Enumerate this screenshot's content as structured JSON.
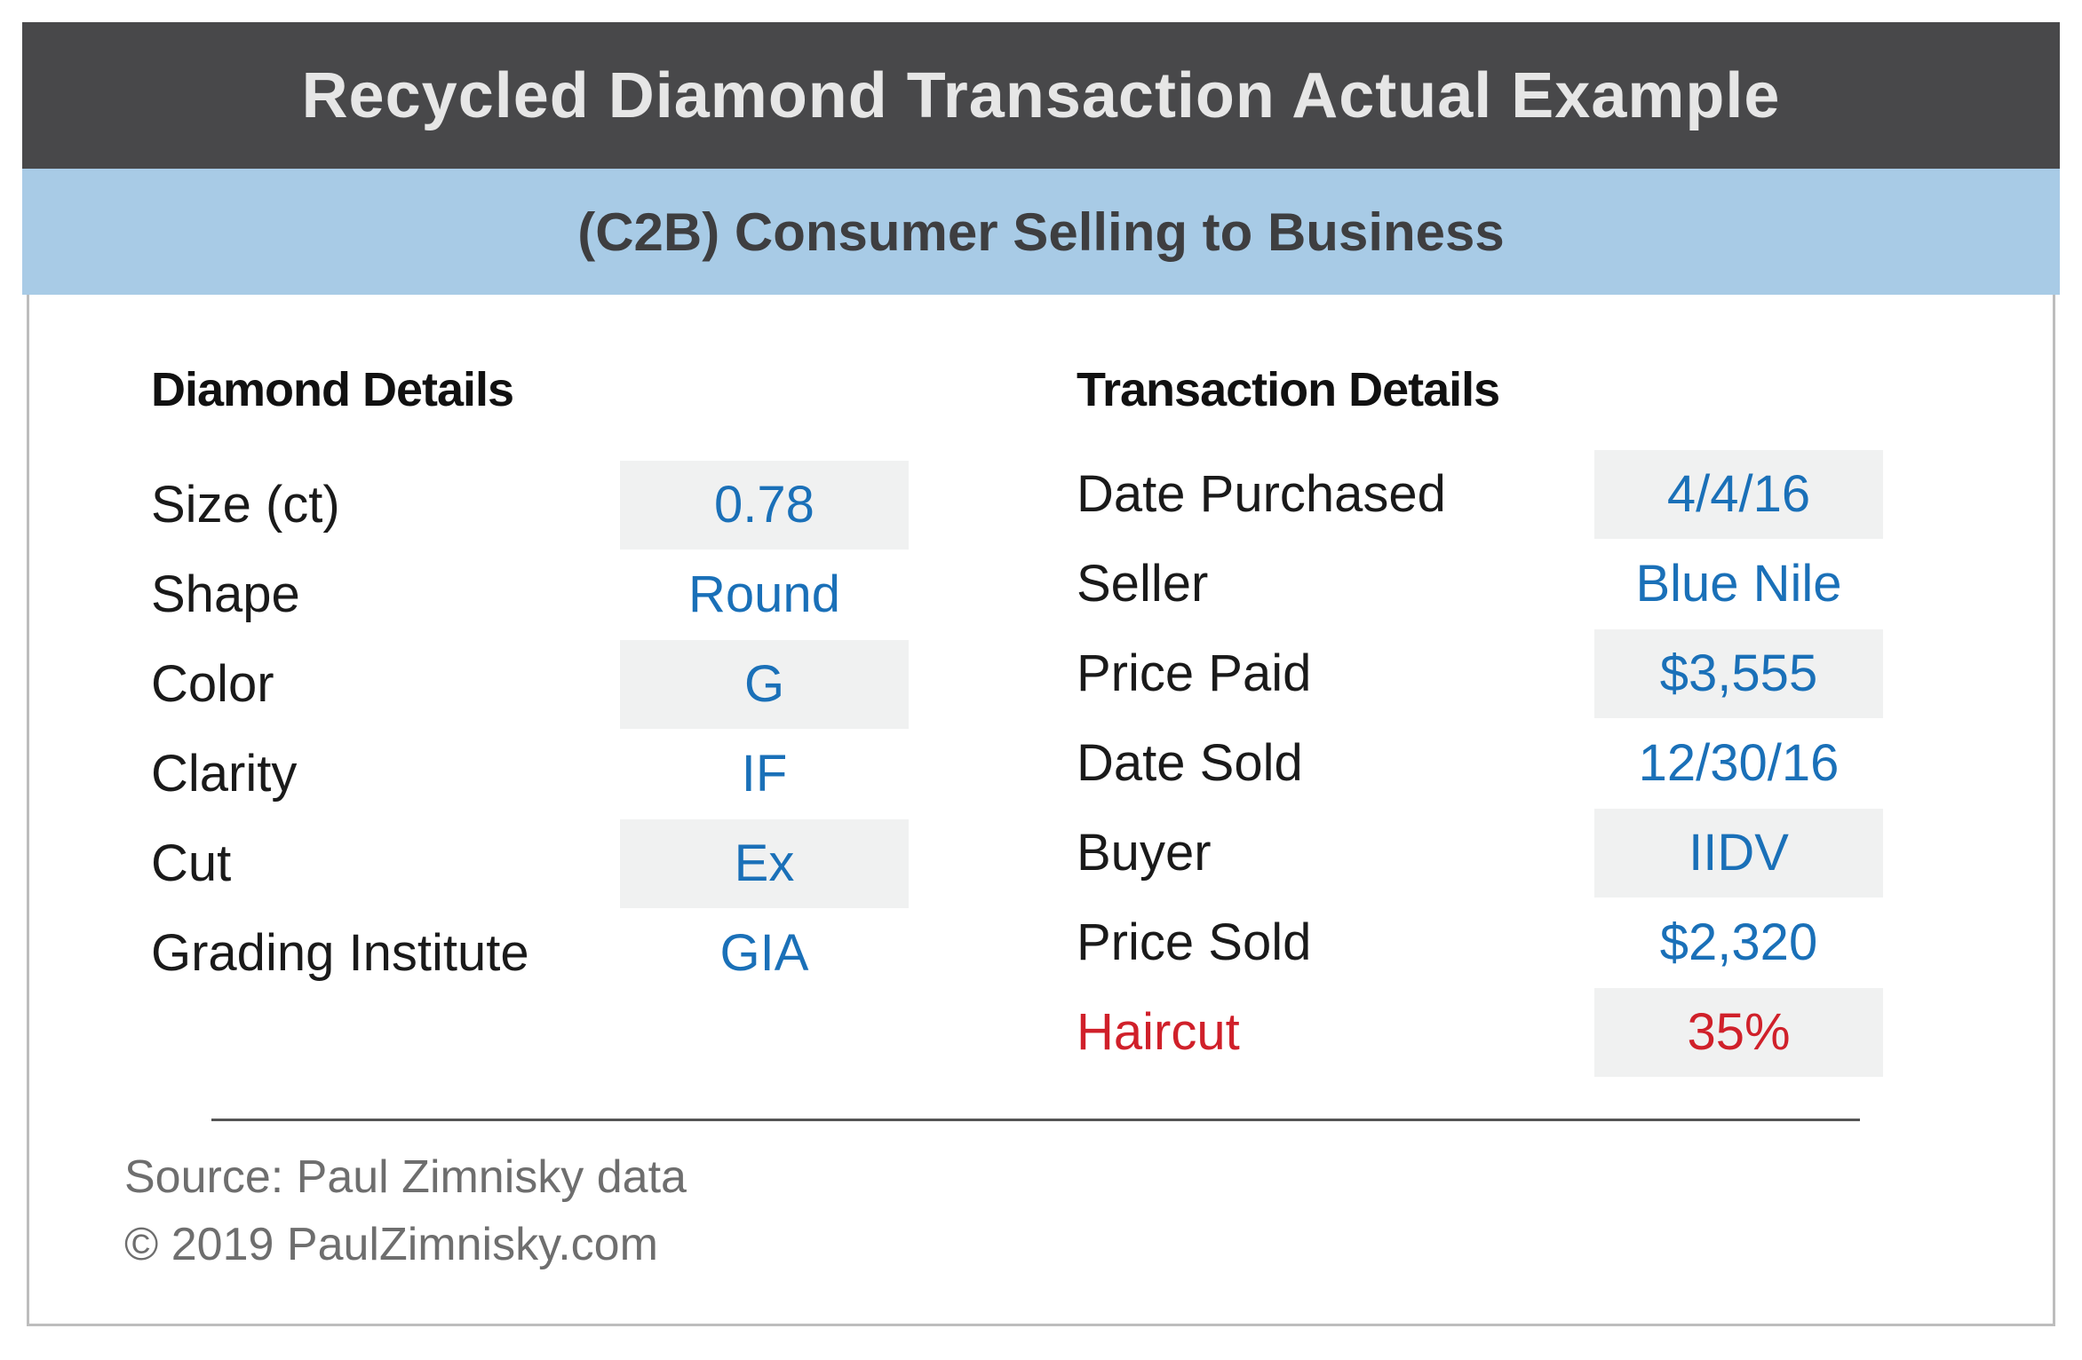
{
  "header": {
    "title": "Recycled Diamond Transaction Actual Example",
    "subtitle": "(C2B) Consumer Selling to Business"
  },
  "diamond_details": {
    "heading": "Diamond Details",
    "rows": [
      {
        "label": "Size (ct)",
        "value": "0.78"
      },
      {
        "label": "Shape",
        "value": "Round"
      },
      {
        "label": "Color",
        "value": "G"
      },
      {
        "label": "Clarity",
        "value": "IF"
      },
      {
        "label": "Cut",
        "value": "Ex"
      },
      {
        "label": "Grading Institute",
        "value": "GIA"
      }
    ]
  },
  "transaction_details": {
    "heading": "Transaction Details",
    "rows": [
      {
        "label": "Date Purchased",
        "value": "4/4/16"
      },
      {
        "label": "Seller",
        "value": "Blue Nile"
      },
      {
        "label": "Price Paid",
        "value": "$3,555"
      },
      {
        "label": "Date Sold",
        "value": "12/30/16"
      },
      {
        "label": "Buyer",
        "value": "IIDV"
      },
      {
        "label": "Price Sold",
        "value": "$2,320"
      },
      {
        "label": "Haircut",
        "value": "35%"
      }
    ]
  },
  "footer": {
    "source": "Source: Paul Zimnisky data",
    "copyright": "© 2019 PaulZimnisky.com"
  },
  "colors": {
    "title_bar": "#48484a",
    "subtitle_bar": "#a8cbe6",
    "value_text": "#1a70b8",
    "alert_text": "#d0202a",
    "shaded_cell": "#f0f1f1"
  }
}
